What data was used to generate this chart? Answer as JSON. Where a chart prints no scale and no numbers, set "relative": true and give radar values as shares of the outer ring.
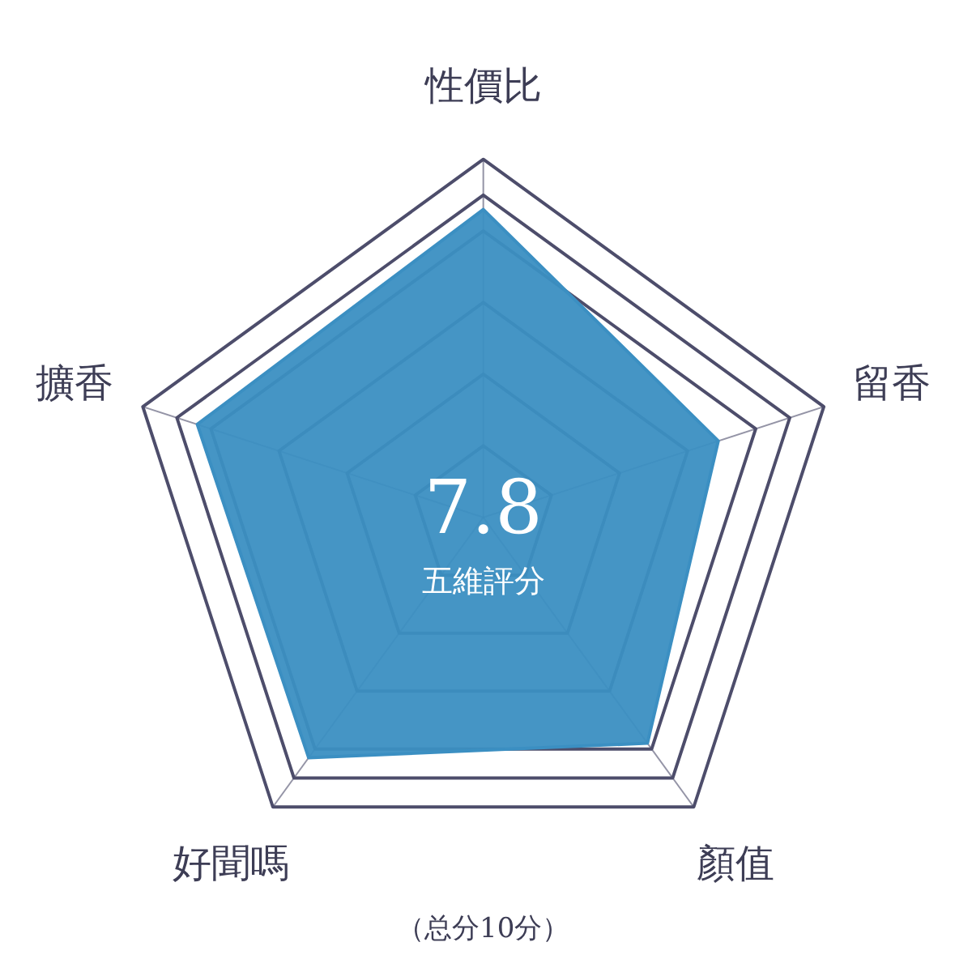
{
  "chart_data": {
    "type": "radar",
    "title": "7.8",
    "subtitle": "五維評分",
    "categories": [
      "性價比",
      "留香",
      "顏值",
      "好聞嗎",
      "擴香"
    ],
    "series": [
      {
        "color": "#3b8fc2",
        "values": [
          0.86,
          0.69,
          0.78,
          0.83,
          0.84
        ]
      }
    ],
    "relative": true,
    "grid": true,
    "annotations": [
      "（总分10分）"
    ]
  }
}
